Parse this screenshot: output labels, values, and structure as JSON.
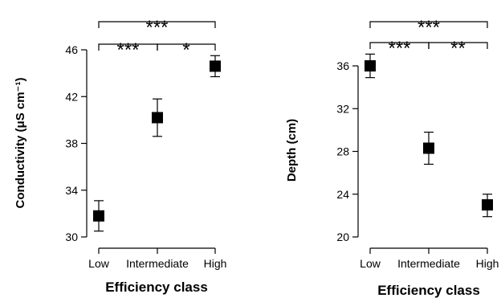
{
  "chart_data": [
    {
      "type": "scatter",
      "categories": [
        "Low",
        "Intermediate",
        "High"
      ],
      "values": [
        31.8,
        40.2,
        44.6
      ],
      "errors": [
        [
          30.5,
          33.1
        ],
        [
          38.6,
          41.8
        ],
        [
          43.7,
          45.5
        ]
      ],
      "xlabel": "Efficiency class",
      "ylabel": "Conductivity (μS cm⁻¹)",
      "ylim": [
        30,
        46
      ],
      "yticks": [
        30,
        34,
        38,
        42,
        46
      ],
      "grid": false,
      "significance": [
        {
          "from": 0,
          "to": 1,
          "label": "***"
        },
        {
          "from": 1,
          "to": 2,
          "label": "*"
        },
        {
          "from": 0,
          "to": 2,
          "label": "***"
        }
      ]
    },
    {
      "type": "scatter",
      "categories": [
        "Low",
        "Intermediate",
        "High"
      ],
      "values": [
        36.0,
        28.3,
        23.0
      ],
      "errors": [
        [
          34.9,
          37.1
        ],
        [
          26.8,
          29.8
        ],
        [
          21.9,
          24.0
        ]
      ],
      "xlabel": "Efficiency class",
      "ylabel": "Depth (cm)",
      "ylim": [
        20,
        36
      ],
      "yticks": [
        20,
        24,
        28,
        32,
        36
      ],
      "grid": false,
      "significance": [
        {
          "from": 0,
          "to": 1,
          "label": "***"
        },
        {
          "from": 1,
          "to": 2,
          "label": "**"
        },
        {
          "from": 0,
          "to": 2,
          "label": "***"
        }
      ]
    }
  ]
}
